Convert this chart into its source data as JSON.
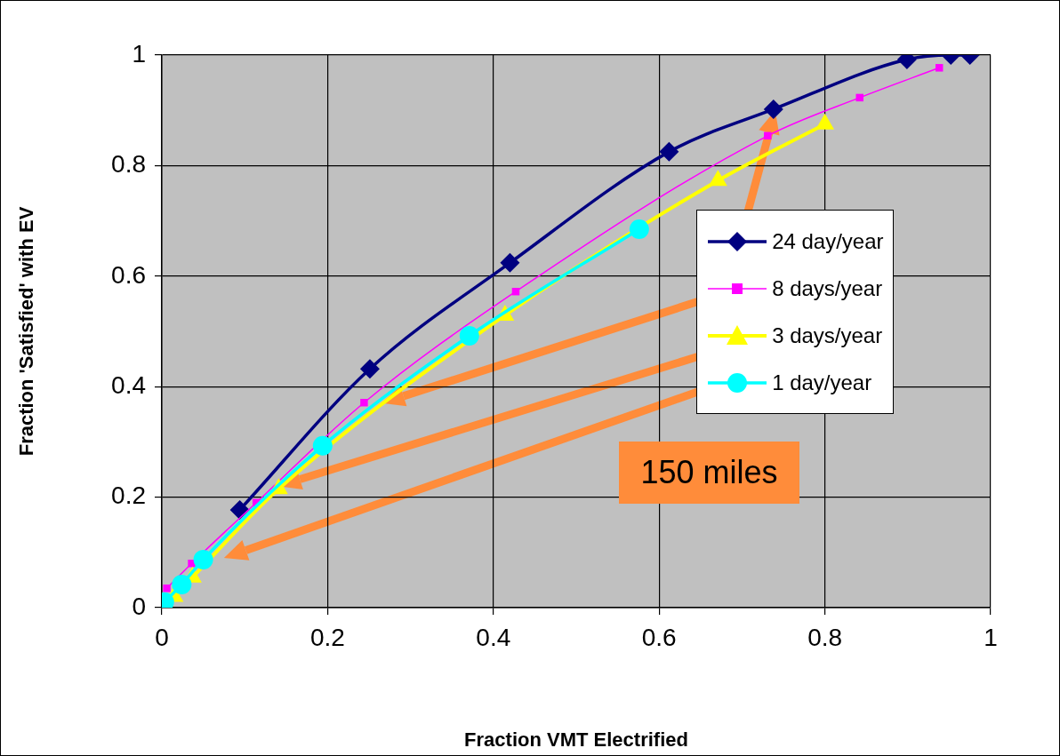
{
  "chart_data": {
    "type": "line",
    "xlabel": "Fraction VMT Electrified",
    "ylabel": "Fraction 'Satisfied' with EV",
    "xlim": [
      0,
      1
    ],
    "ylim": [
      0,
      1
    ],
    "xticks": [
      0,
      0.2,
      0.4,
      0.6,
      0.8,
      1
    ],
    "yticks": [
      0,
      0.2,
      0.4,
      0.6,
      0.8,
      1
    ],
    "grid": true,
    "legend": "right",
    "line_style": "solid",
    "annotations": [
      "150 miles"
    ],
    "series": [
      {
        "name": "24 day/year",
        "color": "#000080",
        "marker": "diamond",
        "x": [
          0.094,
          0.251,
          0.42,
          0.612,
          0.738,
          0.899,
          0.952,
          0.975
        ],
        "values": [
          0.177,
          0.432,
          0.624,
          0.825,
          0.902,
          0.992,
          1.0,
          1.0
        ]
      },
      {
        "name": "8 days/year",
        "color": "#ff00ff",
        "marker": "square",
        "x": [
          0.006,
          0.036,
          0.114,
          0.244,
          0.427,
          0.731,
          0.842,
          0.938
        ],
        "values": [
          0.035,
          0.08,
          0.19,
          0.371,
          0.572,
          0.854,
          0.923,
          0.977
        ]
      },
      {
        "name": "3 days/year",
        "color": "#ffff00",
        "marker": "triangle",
        "x": [
          0.015,
          0.037,
          0.141,
          0.414,
          0.671,
          0.8
        ],
        "values": [
          0.02,
          0.055,
          0.215,
          0.529,
          0.773,
          0.875
        ]
      },
      {
        "name": "1 day/year",
        "color": "#00ffff",
        "marker": "circle",
        "x": [
          0.003,
          0.024,
          0.05,
          0.194,
          0.371,
          0.576
        ],
        "values": [
          0.01,
          0.042,
          0.087,
          0.293,
          0.492,
          0.685
        ]
      }
    ]
  }
}
